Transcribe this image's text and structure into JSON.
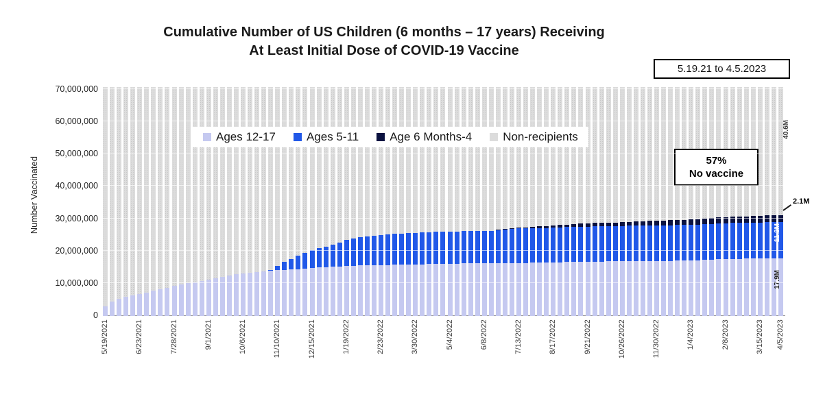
{
  "title": {
    "line1": "Cumulative Number of US Children (6 months – 17 years) Receiving",
    "line2": "At Least Initial Dose of COVID-19 Vaccine"
  },
  "date_range_box": "5.19.21 to 4.5.2023",
  "y_axis_title": "Number Vaccinated",
  "annotations": {
    "no_vaccine_pct": "57%",
    "no_vaccine_label": "No vaccine",
    "non_recipients_final": "40.6M",
    "age_6mo_4_final": "2.1M",
    "ages_5_11_final": "11.2M",
    "ages_12_17_final": "17.9M"
  },
  "legend": [
    {
      "label": "Ages 12-17",
      "color": "#c5c9f0"
    },
    {
      "label": "Ages 5-11",
      "color": "#2158e8"
    },
    {
      "label": "Age 6 Months-4",
      "color": "#0b1240"
    },
    {
      "label": "Non-recipients",
      "color": "#dcdcdc"
    }
  ],
  "chart_data": {
    "type": "bar",
    "stacked": true,
    "interval": "weekly",
    "title": "Cumulative Number of US Children (6 months – 17 years) Receiving At Least Initial Dose of COVID-19 Vaccine",
    "ylabel": "Number Vaccinated",
    "ylim": [
      0,
      70000000
    ],
    "grid": true,
    "legend_position": "inside-top",
    "y_ticks": [
      "0",
      "10,000,000",
      "20,000,000",
      "30,000,000",
      "40,000,000",
      "50,000,000",
      "60,000,000",
      "70,000,000"
    ],
    "x_tick_labels": [
      "5/19/2021",
      "6/23/2021",
      "7/28/2021",
      "9/1/2021",
      "10/6/2021",
      "11/10/2021",
      "12/15/2021",
      "1/19/2022",
      "2/23/2022",
      "3/30/2022",
      "5/4/2022",
      "6/8/2022",
      "7/13/2022",
      "8/17/2022",
      "9/21/2022",
      "10/26/2022",
      "11/30/2022",
      "1/4/2023",
      "2/8/2023",
      "3/15/2023",
      "4/5/2023"
    ],
    "x_tick_indices": [
      0,
      5,
      10,
      15,
      20,
      25,
      30,
      35,
      40,
      45,
      50,
      55,
      60,
      65,
      70,
      75,
      80,
      85,
      90,
      95,
      98
    ],
    "total_child_population_millions": 71.8,
    "non_recipients_fill": "remainder of total child population; bars fill to top of plot",
    "series": [
      {
        "name": "Ages 12-17",
        "key": "ages-12-17",
        "color": "#c5c9f0",
        "final_label": "17.9M",
        "values_millions": [
          3.0,
          4.4,
          5.4,
          6.0,
          6.4,
          6.8,
          7.3,
          7.8,
          8.3,
          8.8,
          9.3,
          9.8,
          10.2,
          10.5,
          10.9,
          11.2,
          11.7,
          12.1,
          12.5,
          12.9,
          13.2,
          13.4,
          13.6,
          13.8,
          14.0,
          14.2,
          14.3,
          14.4,
          14.5,
          14.7,
          14.9,
          15.0,
          15.1,
          15.2,
          15.3,
          15.4,
          15.5,
          15.6,
          15.65,
          15.7,
          15.75,
          15.8,
          15.85,
          15.9,
          15.9,
          15.95,
          16.0,
          16.05,
          16.1,
          16.15,
          16.2,
          16.2,
          16.25,
          16.25,
          16.3,
          16.3,
          16.3,
          16.35,
          16.35,
          16.35,
          16.4,
          16.4,
          16.45,
          16.5,
          16.55,
          16.6,
          16.65,
          16.7,
          16.75,
          16.8,
          16.8,
          16.85,
          16.85,
          16.9,
          16.9,
          16.9,
          16.95,
          16.95,
          17.0,
          17.0,
          17.0,
          17.05,
          17.05,
          17.1,
          17.1,
          17.15,
          17.2,
          17.3,
          17.4,
          17.55,
          17.6,
          17.65,
          17.7,
          17.75,
          17.8,
          17.8,
          17.85,
          17.85,
          17.9
        ]
      },
      {
        "name": "Ages 5-11",
        "key": "ages-5-11",
        "color": "#2158e8",
        "final_label": "11.2M",
        "values_millions": [
          0,
          0,
          0,
          0,
          0,
          0,
          0,
          0,
          0,
          0,
          0,
          0,
          0,
          0,
          0,
          0,
          0,
          0,
          0,
          0,
          0,
          0,
          0,
          0,
          0.3,
          1.3,
          2.4,
          3.3,
          4.1,
          4.8,
          5.5,
          6.0,
          6.4,
          6.9,
          7.5,
          8.1,
          8.5,
          8.8,
          9.0,
          9.2,
          9.3,
          9.45,
          9.55,
          9.65,
          9.7,
          9.8,
          9.85,
          9.9,
          9.9,
          9.95,
          9.95,
          10.0,
          10.0,
          10.0,
          10.0,
          10.05,
          10.1,
          10.3,
          10.5,
          10.65,
          10.7,
          10.7,
          10.7,
          10.7,
          10.7,
          10.75,
          10.75,
          10.8,
          10.8,
          10.85,
          10.85,
          10.9,
          10.9,
          10.9,
          10.9,
          10.95,
          10.95,
          10.95,
          11.0,
          11.0,
          11.0,
          11.0,
          11.05,
          11.05,
          11.05,
          11.05,
          11.1,
          11.1,
          11.1,
          11.1,
          11.1,
          11.15,
          11.15,
          11.15,
          11.15,
          11.15,
          11.2,
          11.2,
          11.2
        ]
      },
      {
        "name": "Age 6 Months-4",
        "key": "age-6mo-4",
        "color": "#0b1240",
        "final_label": "2.1M",
        "values_millions": [
          0,
          0,
          0,
          0,
          0,
          0,
          0,
          0,
          0,
          0,
          0,
          0,
          0,
          0,
          0,
          0,
          0,
          0,
          0,
          0,
          0,
          0,
          0,
          0,
          0,
          0,
          0,
          0,
          0,
          0,
          0,
          0,
          0,
          0,
          0,
          0,
          0,
          0,
          0,
          0,
          0,
          0,
          0,
          0,
          0,
          0,
          0,
          0,
          0,
          0,
          0,
          0,
          0,
          0,
          0,
          0,
          0,
          0.1,
          0.15,
          0.2,
          0.3,
          0.35,
          0.4,
          0.5,
          0.6,
          0.7,
          0.75,
          0.8,
          0.85,
          0.9,
          0.95,
          1.0,
          1.05,
          1.1,
          1.15,
          1.2,
          1.25,
          1.3,
          1.35,
          1.4,
          1.45,
          1.5,
          1.55,
          1.6,
          1.6,
          1.65,
          1.7,
          1.75,
          1.8,
          1.8,
          1.85,
          1.9,
          1.9,
          1.95,
          2.0,
          2.0,
          2.05,
          2.05,
          2.1
        ]
      }
    ]
  }
}
